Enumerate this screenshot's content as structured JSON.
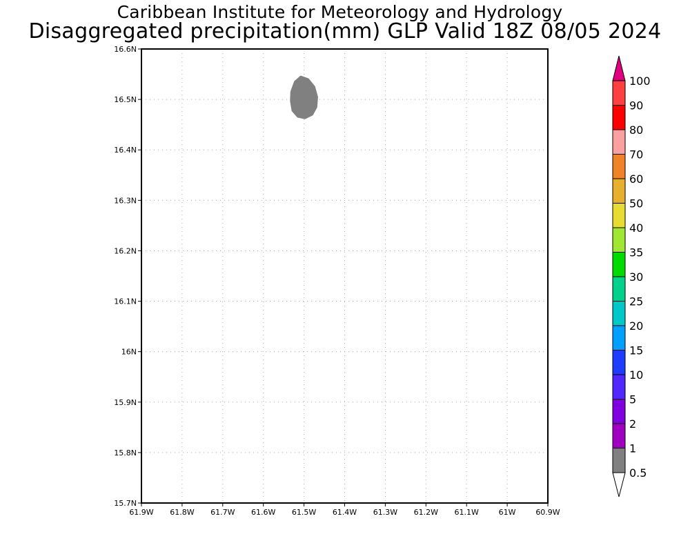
{
  "title": {
    "line1": "Caribbean Institute for Meteorology and Hydrology",
    "line2": "Disaggregated precipitation(mm) GLP Valid 18Z 08/05 2024"
  },
  "map": {
    "lon_range": [
      -61.9,
      -60.9
    ],
    "lat_range": [
      15.7,
      16.6
    ],
    "lat_ticks": [
      {
        "value": 15.7,
        "label": "15.7N"
      },
      {
        "value": 15.8,
        "label": "15.8N"
      },
      {
        "value": 15.9,
        "label": "15.9N"
      },
      {
        "value": 16.0,
        "label": "16N"
      },
      {
        "value": 16.1,
        "label": "16.1N"
      },
      {
        "value": 16.2,
        "label": "16.2N"
      },
      {
        "value": 16.3,
        "label": "16.3N"
      },
      {
        "value": 16.4,
        "label": "16.4N"
      },
      {
        "value": 16.5,
        "label": "16.5N"
      },
      {
        "value": 16.6,
        "label": "16.6N"
      }
    ],
    "lon_ticks": [
      {
        "value": -61.9,
        "label": "61.9W"
      },
      {
        "value": -61.8,
        "label": "61.8W"
      },
      {
        "value": -61.7,
        "label": "61.7W"
      },
      {
        "value": -61.6,
        "label": "61.6W"
      },
      {
        "value": -61.5,
        "label": "61.5W"
      },
      {
        "value": -61.4,
        "label": "61.4W"
      },
      {
        "value": -61.3,
        "label": "61.3W"
      },
      {
        "value": -61.2,
        "label": "61.2W"
      },
      {
        "value": -61.1,
        "label": "61.1W"
      },
      {
        "value": -61.0,
        "label": "61W"
      },
      {
        "value": -60.9,
        "label": "60.9W"
      }
    ],
    "grid": "dotted",
    "precip_region": {
      "range_mm": "0.5-1",
      "color": "#808080",
      "outline": [
        [
          -61.508,
          16.545
        ],
        [
          -61.49,
          16.54
        ],
        [
          -61.475,
          16.525
        ],
        [
          -61.468,
          16.505
        ],
        [
          -61.47,
          16.485
        ],
        [
          -61.48,
          16.47
        ],
        [
          -61.498,
          16.463
        ],
        [
          -61.515,
          16.466
        ],
        [
          -61.528,
          16.478
        ],
        [
          -61.532,
          16.497
        ],
        [
          -61.531,
          16.515
        ],
        [
          -61.522,
          16.535
        ]
      ]
    }
  },
  "colorbar": {
    "labels": [
      "0.5",
      "1",
      "2",
      "5",
      "10",
      "15",
      "20",
      "25",
      "30",
      "35",
      "40",
      "50",
      "60",
      "70",
      "80",
      "90",
      "100"
    ],
    "segment_colors": [
      "#808080",
      "#a000c0",
      "#8000e0",
      "#5028ff",
      "#1e3cff",
      "#00a0ff",
      "#00c8c8",
      "#00d28c",
      "#00dc00",
      "#a0e632",
      "#e6dc32",
      "#e6af2d",
      "#f08228",
      "#faa0a0",
      "#ff0000",
      "#ff4040"
    ],
    "under_color": "#ffffff",
    "over_color": "#e0007f"
  }
}
